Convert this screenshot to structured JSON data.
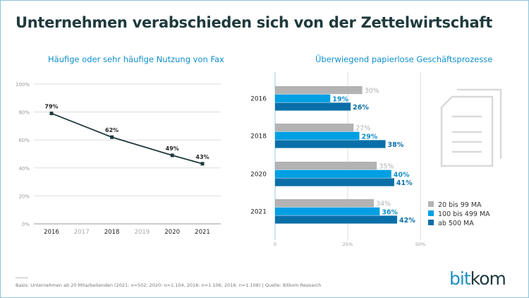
{
  "title": "Unternehmen verabschieden sich von der Zettelwirtschaft",
  "footnote": "Basis: Unternehmen ab 20 Mitarbeitenden (2021: n=502; 2020: n=1.104, 2018: n=1.106; 2016: n=1.108) | Quelle: Bitkom Research",
  "logo": "bitkom",
  "icon": "document-icon",
  "chart_data": [
    {
      "type": "line",
      "title": "Häufige oder sehr häufige Nutzung von Fax",
      "categories": [
        "2016",
        "2017",
        "2018",
        "2019",
        "2020",
        "2021"
      ],
      "highlighted_categories": [
        "2016",
        "2018",
        "2020",
        "2021"
      ],
      "points": [
        {
          "x": "2016",
          "y": 79
        },
        {
          "x": "2018",
          "y": 62
        },
        {
          "x": "2020",
          "y": 49
        },
        {
          "x": "2021",
          "y": 43
        }
      ],
      "data_labels": [
        "79%",
        "62%",
        "49%",
        "43%"
      ],
      "ylim": [
        0,
        100
      ],
      "yticks": [
        "0%",
        "20%",
        "40%",
        "60%",
        "80%",
        "100%"
      ],
      "grid": true,
      "color": "#1f3a3d"
    },
    {
      "type": "bar",
      "orientation": "horizontal",
      "title": "Überwiegend papierlose Geschäftsprozesse",
      "categories": [
        "2016",
        "2018",
        "2020",
        "2021"
      ],
      "series": [
        {
          "name": "20 bis 99 MA",
          "color": "#b3b3b3",
          "label_color": "#b3b3b3",
          "values": [
            30,
            27,
            35,
            34
          ]
        },
        {
          "name": "100 bis 499 MA",
          "color": "#009fe3",
          "label_color": "#0f8fcb",
          "values": [
            19,
            29,
            40,
            36
          ]
        },
        {
          "name": "ab 500 MA",
          "color": "#0a6fa8",
          "label_color": "#0a6fa8",
          "values": [
            26,
            38,
            41,
            42
          ]
        }
      ],
      "xlim": [
        0,
        50
      ],
      "xticks": [
        "0",
        "25%",
        "50%"
      ],
      "legend": "bottom-right"
    }
  ]
}
